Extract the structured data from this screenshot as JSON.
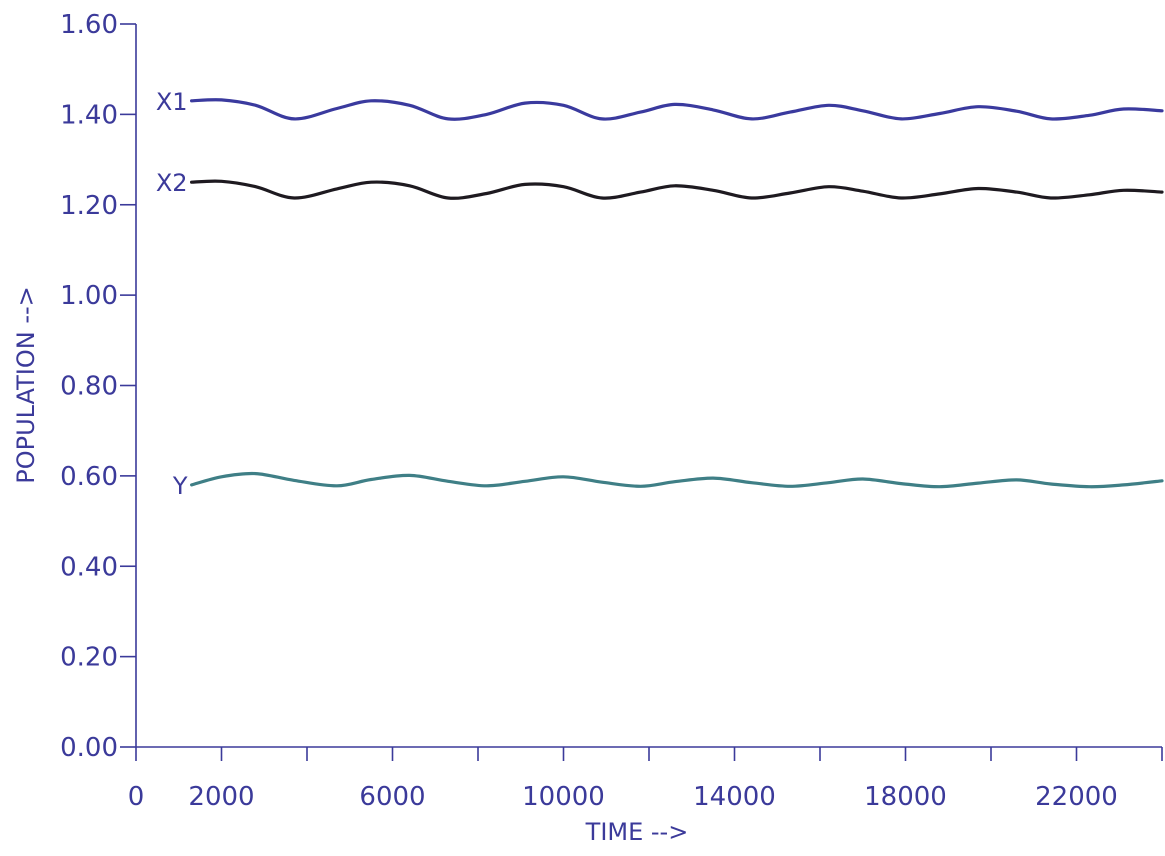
{
  "chart_data": {
    "type": "line",
    "title": "",
    "xlabel": "TIME -->",
    "ylabel": "POPULATION -->",
    "xlim": [
      0,
      24000
    ],
    "ylim": [
      0,
      1.6
    ],
    "x_tick_values": [
      0,
      2000,
      4000,
      6000,
      8000,
      10000,
      12000,
      14000,
      16000,
      18000,
      20000,
      22000,
      24000
    ],
    "x_tick_labels": [
      "0",
      "2000",
      "",
      "6000",
      "",
      "10000",
      "",
      "14000",
      "",
      "18000",
      "",
      "22000",
      ""
    ],
    "y_ticks": [
      "0.00",
      "0.20",
      "0.40",
      "0.60",
      "0.80",
      "1.00",
      "1.20",
      "1.40",
      "1.60"
    ],
    "y_tick_values": [
      0,
      0.2,
      0.4,
      0.6,
      0.8,
      1.0,
      1.2,
      1.4,
      1.6
    ],
    "grid": false,
    "series": [
      {
        "name": "X1",
        "color": "#3a3a9e",
        "x": [
          1300,
          2000,
          2800,
          3700,
          4700,
          5500,
          6400,
          7300,
          8200,
          9100,
          10000,
          10900,
          11800,
          12600,
          13500,
          14400,
          15300,
          16200,
          17000,
          17900,
          18800,
          19700,
          20600,
          21400,
          22300,
          23100,
          24000
        ],
        "y": [
          1.43,
          1.432,
          1.42,
          1.39,
          1.413,
          1.43,
          1.42,
          1.39,
          1.4,
          1.425,
          1.42,
          1.39,
          1.405,
          1.422,
          1.41,
          1.39,
          1.405,
          1.42,
          1.408,
          1.39,
          1.402,
          1.417,
          1.407,
          1.39,
          1.398,
          1.412,
          1.408
        ]
      },
      {
        "name": "X2",
        "color": "#1e1a20",
        "x": [
          1300,
          2000,
          2800,
          3700,
          4700,
          5500,
          6400,
          7300,
          8200,
          9100,
          10000,
          10900,
          11800,
          12600,
          13500,
          14400,
          15300,
          16200,
          17000,
          17900,
          18800,
          19700,
          20600,
          21400,
          22300,
          23100,
          24000
        ],
        "y": [
          1.25,
          1.252,
          1.24,
          1.215,
          1.235,
          1.25,
          1.242,
          1.215,
          1.225,
          1.245,
          1.24,
          1.215,
          1.228,
          1.242,
          1.232,
          1.215,
          1.226,
          1.24,
          1.23,
          1.215,
          1.224,
          1.236,
          1.228,
          1.215,
          1.222,
          1.232,
          1.228
        ]
      },
      {
        "name": "Y",
        "color": "#3f7f86",
        "x": [
          1300,
          2000,
          2800,
          3700,
          4700,
          5500,
          6400,
          7300,
          8200,
          9100,
          10000,
          10900,
          11800,
          12600,
          13500,
          14400,
          15300,
          16200,
          17000,
          17900,
          18800,
          19700,
          20600,
          21400,
          22300,
          23100,
          24000
        ],
        "y": [
          0.58,
          0.598,
          0.605,
          0.59,
          0.578,
          0.592,
          0.601,
          0.588,
          0.578,
          0.588,
          0.598,
          0.586,
          0.577,
          0.587,
          0.595,
          0.585,
          0.577,
          0.585,
          0.593,
          0.583,
          0.576,
          0.584,
          0.591,
          0.582,
          0.576,
          0.58,
          0.589
        ]
      }
    ]
  }
}
